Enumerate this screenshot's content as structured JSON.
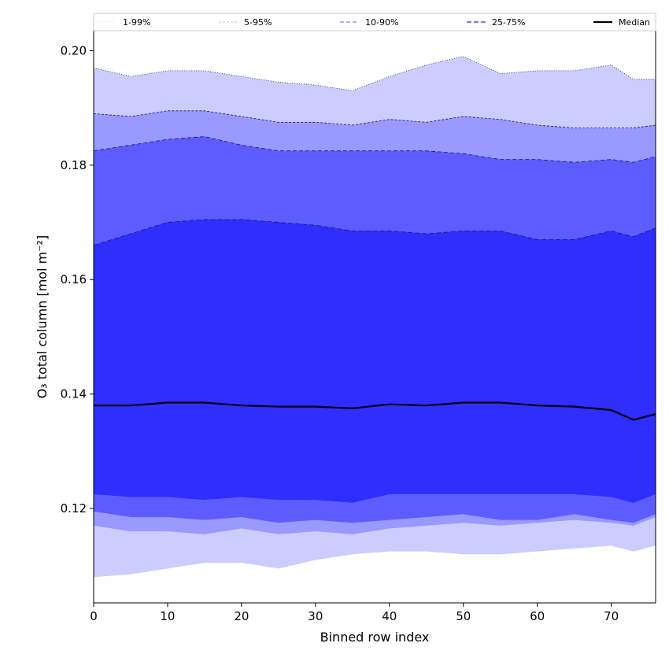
{
  "chart_data": {
    "type": "area",
    "title": "",
    "xlabel": "Binned row index",
    "ylabel": "O₃ total column [mol m⁻²]",
    "xlim": [
      0,
      76
    ],
    "ylim": [
      0.1035,
      0.2035
    ],
    "xticks": [
      0,
      10,
      20,
      30,
      40,
      50,
      60,
      70
    ],
    "xtick_labels": [
      "0",
      "10",
      "20",
      "30",
      "40",
      "50",
      "60",
      "70"
    ],
    "yticks": [
      0.12,
      0.14,
      0.16,
      0.18,
      0.2
    ],
    "ytick_labels": [
      "0.12",
      "0.14",
      "0.16",
      "0.18",
      "0.20"
    ],
    "grid": false,
    "legend": {
      "placement": "top, above plot",
      "entries": [
        "1-99%",
        "5-95%",
        "10-90%",
        "25-75%",
        "Median"
      ]
    },
    "x": [
      0,
      5,
      10,
      15,
      20,
      25,
      30,
      35,
      40,
      45,
      50,
      55,
      60,
      65,
      70,
      73,
      76
    ],
    "bands": [
      {
        "name": "1-99%",
        "color": "#ccccff",
        "lower": [
          0.108,
          0.1085,
          0.1095,
          0.1105,
          0.1105,
          0.1095,
          0.111,
          0.112,
          0.1125,
          0.1125,
          0.112,
          0.112,
          0.1125,
          0.113,
          0.1135,
          0.1125,
          0.1135
        ],
        "upper": [
          0.197,
          0.1955,
          0.1965,
          0.1965,
          0.1955,
          0.1945,
          0.194,
          0.193,
          0.1955,
          0.1975,
          0.199,
          0.196,
          0.1965,
          0.1965,
          0.1975,
          0.195,
          0.195
        ]
      },
      {
        "name": "5-95%",
        "color": "#9999ff",
        "lower": [
          0.117,
          0.116,
          0.116,
          0.1155,
          0.1165,
          0.1155,
          0.116,
          0.1155,
          0.1165,
          0.117,
          0.1175,
          0.117,
          0.1175,
          0.118,
          0.1175,
          0.117,
          0.1185
        ],
        "upper": [
          0.189,
          0.1885,
          0.1895,
          0.1895,
          0.1885,
          0.1875,
          0.1875,
          0.187,
          0.188,
          0.1875,
          0.1885,
          0.188,
          0.187,
          0.1865,
          0.1865,
          0.1865,
          0.187
        ]
      },
      {
        "name": "10-90%",
        "color": "#5c5cff",
        "lower": [
          0.1195,
          0.1185,
          0.1185,
          0.118,
          0.1185,
          0.1175,
          0.118,
          0.1175,
          0.118,
          0.1185,
          0.119,
          0.118,
          0.118,
          0.119,
          0.118,
          0.1175,
          0.119
        ],
        "upper": [
          0.1825,
          0.1835,
          0.1845,
          0.185,
          0.1835,
          0.1825,
          0.1825,
          0.1825,
          0.1825,
          0.1825,
          0.182,
          0.181,
          0.181,
          0.1805,
          0.181,
          0.1805,
          0.1815
        ]
      },
      {
        "name": "25-75%",
        "color": "#2e2eff",
        "lower": [
          0.1225,
          0.122,
          0.122,
          0.1215,
          0.122,
          0.1215,
          0.1215,
          0.121,
          0.1225,
          0.1225,
          0.1225,
          0.1225,
          0.1225,
          0.1225,
          0.122,
          0.121,
          0.1225
        ],
        "upper": [
          0.166,
          0.168,
          0.17,
          0.1705,
          0.1705,
          0.17,
          0.1695,
          0.1685,
          0.1685,
          0.168,
          0.1685,
          0.1685,
          0.167,
          0.167,
          0.1685,
          0.1675,
          0.169
        ]
      }
    ],
    "series": [
      {
        "name": "Median",
        "color": "#000000",
        "values": [
          0.138,
          0.138,
          0.1385,
          0.1385,
          0.138,
          0.1378,
          0.1378,
          0.1375,
          0.1382,
          0.138,
          0.1385,
          0.1385,
          0.138,
          0.1378,
          0.1372,
          0.1355,
          0.1365
        ]
      }
    ]
  }
}
